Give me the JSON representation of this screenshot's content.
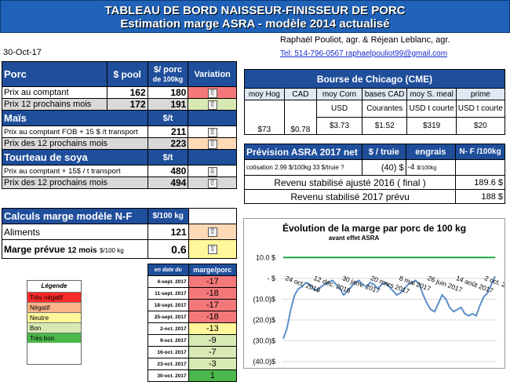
{
  "header": {
    "title_line1": "TABLEAU DE BORD NAISSEUR-FINISSEUR DE PORC",
    "title_line2": "Estimation marge ASRA - modèle 2014 actualisé"
  },
  "date": "30-Oct-17",
  "authors": "Raphaël Pouliot, agr.   &   Réjean Leblanc, agr.",
  "contact": "Tel:    514-796-0567   raphaelpouliot99@gmail.com",
  "porc": {
    "section": "Porc",
    "col_pool": "$ pool",
    "col_porc_line1": "$/ porc",
    "col_porc_line2": "de 100kg",
    "col_variation": "Variation",
    "rows": [
      {
        "label": "Prix au comptant",
        "pool": "162",
        "porc": "180",
        "arrow": "⇧"
      },
      {
        "label": "Prix 12 prochains mois",
        "pool": "172",
        "porc": "191",
        "arrow": "⇧"
      }
    ]
  },
  "mais": {
    "section": "Maïs",
    "unit": "$/t",
    "rows": [
      {
        "label": "Prix au comptant FOB + 15 $ /t transport",
        "value": "211",
        "arrow": "⇧"
      },
      {
        "label": "Prix des 12 prochains mois",
        "value": "223",
        "arrow": "⇧"
      }
    ]
  },
  "soya": {
    "section": "Tourteau de soya",
    "unit": "$/t",
    "rows": [
      {
        "label": "Prix au comptant + 15$ / t  transport",
        "value": "480",
        "arrow": "⇩"
      },
      {
        "label": "Prix des 12 prochains mois",
        "value": "494",
        "arrow": "⇧"
      }
    ]
  },
  "cme": {
    "title": "Bourse de Chicago (CME)",
    "headers": [
      "moy Hog",
      "CAD",
      "moy Corn",
      "bases CAD",
      "moy S. meal",
      "prime"
    ],
    "units": [
      "",
      "",
      "USD",
      "Courantes",
      "USD t courte",
      "USD t courte"
    ],
    "values": [
      "$73",
      "$0.78",
      "$3.73",
      "$1.52",
      "$319",
      "$20"
    ]
  },
  "asra": {
    "title": "Prévision ASRA 2017 net",
    "col_truie": "$ / truie",
    "col_engrais": "engrais",
    "col_nf": "N- F /100kg",
    "cotisation_label": "cotisation 2.99 $/100kg  33 $/truie ?",
    "cotisation_truie": "(40) $",
    "cotisation_engrais": "-4",
    "cotisation_engrais_unit": "$/100kg",
    "revenu_ajuste_label": "Revenu stabilisé ajusté 2016 ( final )",
    "revenu_ajuste_value": "189.6 $",
    "revenu_prevu_label": "Revenu stabilisé 2017 prévu",
    "revenu_prevu_value": "188 $"
  },
  "calculs": {
    "section": "Calculs marge  modèle N-F",
    "unit": "$/100 kg",
    "aliments_label": "Aliments",
    "aliments_value": "121",
    "marge_label": "Marge prévue",
    "marge_sub": "12 mois",
    "marge_unit": "$/100 kg",
    "marge_value": "0.6",
    "hist_col_date": "en date du",
    "hist_col_marge": "marge/porc",
    "history": [
      {
        "date": "4-sept. 2017",
        "value": "-17",
        "color": "red"
      },
      {
        "date": "11-sept. 2017",
        "value": "-18",
        "color": "red"
      },
      {
        "date": "18-sept. 2017",
        "value": "-17",
        "color": "red"
      },
      {
        "date": "25-sept. 2017",
        "value": "-18",
        "color": "red"
      },
      {
        "date": "2-oct. 2017",
        "value": "-13",
        "color": "yellow"
      },
      {
        "date": "9-oct. 2017",
        "value": "-9",
        "color": "lgreen"
      },
      {
        "date": "16-oct. 2017",
        "value": "-7",
        "color": "lgreen"
      },
      {
        "date": "23-oct. 2017",
        "value": "-3",
        "color": "lgreen"
      },
      {
        "date": "30-oct. 2017",
        "value": "1",
        "color": "green"
      }
    ]
  },
  "legend": {
    "title": "Légende",
    "items": [
      {
        "label": "Très négatif",
        "color": "#ff2a2a"
      },
      {
        "label": "Négatif",
        "color": "#f9b487"
      },
      {
        "label": "Neutre",
        "color": "#fff799"
      },
      {
        "label": "Bon",
        "color": "#d8e9b4"
      },
      {
        "label": "Très bon",
        "color": "#4cb84c"
      }
    ]
  },
  "chart_data": {
    "type": "line",
    "title": "Évolution de la marge par porc de 100 kg",
    "subtitle": "avant effet ASRA",
    "yticks": [
      "10.0 $",
      "-  $",
      "(10.0)$",
      "(20.0)$",
      "(30.0)$",
      "(40.0)$"
    ],
    "ylim": [
      -40,
      15
    ],
    "xticks": [
      "24 oct. 2016",
      "12 déc. 2016",
      "30 janv. 2017",
      "20 mars 2017",
      "8 mai 2017",
      "26 juin 2017",
      "14 août 2017",
      "2 oct. 2017"
    ],
    "series": [
      {
        "color": "#5b8ec7",
        "values": [
          -29,
          -24,
          -15,
          -8,
          -5,
          -4,
          -2,
          -3,
          -5,
          -6,
          -4,
          -3,
          -2,
          -1,
          -3,
          -5,
          -8,
          -6,
          -4,
          -2,
          -1,
          -3,
          -4,
          -2,
          -3,
          -5,
          -3,
          -2,
          -4,
          -6,
          -8,
          -7,
          -5,
          -3,
          -2,
          -1,
          -3,
          -8,
          -12,
          -15,
          -16,
          -12,
          -8,
          -10,
          -14,
          -16,
          -15,
          -14,
          -17,
          -18,
          -17,
          -18,
          -13,
          -9,
          -7,
          -3,
          1
        ]
      },
      {
        "color": "#1fa34a",
        "values": [
          10,
          10,
          10,
          10,
          10,
          10,
          10,
          10,
          10,
          10,
          10,
          10,
          10,
          10,
          10,
          10,
          10,
          10,
          10,
          10,
          10,
          10,
          10,
          10,
          10,
          10,
          10,
          10,
          10,
          10,
          10,
          10,
          10,
          10,
          10,
          10,
          10,
          10,
          10,
          10,
          10,
          10,
          10,
          10,
          10,
          10,
          10,
          10,
          10,
          10,
          10,
          10,
          10,
          10,
          10,
          10,
          10
        ]
      }
    ]
  }
}
